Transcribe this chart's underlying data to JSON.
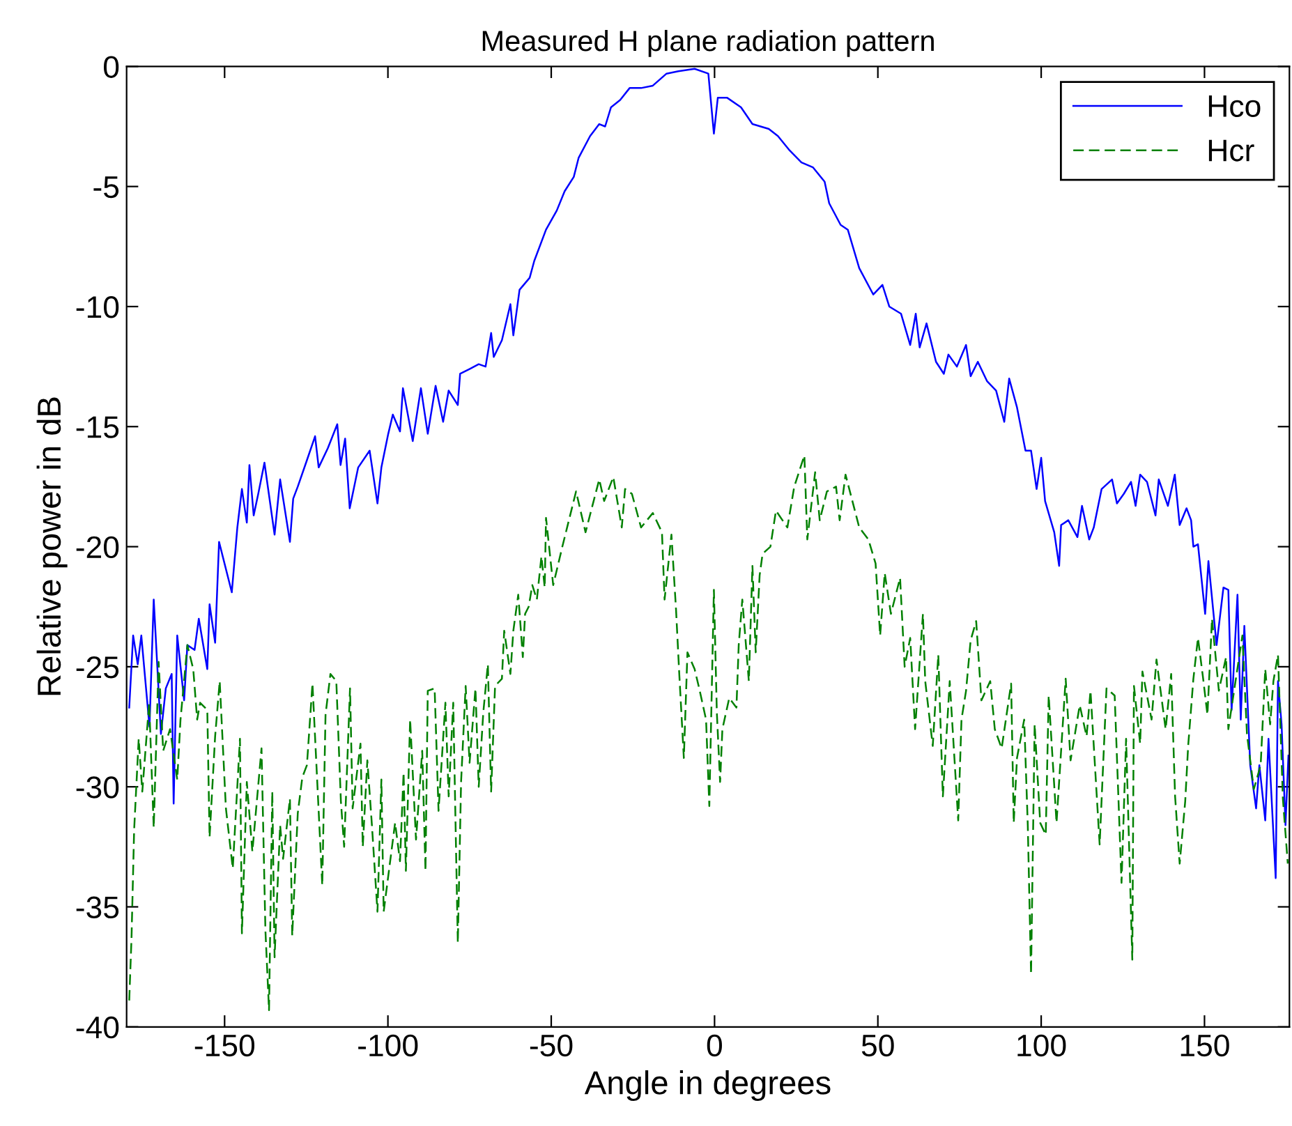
{
  "chart_data": {
    "type": "line",
    "title": "Measured H plane radiation pattern",
    "xlabel": "Angle in degrees",
    "ylabel": "Relative power in dB",
    "xlim": [
      -180,
      176
    ],
    "xticks": [
      -150,
      -100,
      -50,
      0,
      50,
      100,
      150
    ],
    "ylim": [
      -40,
      0
    ],
    "yticks": [
      -40,
      -35,
      -30,
      -25,
      -20,
      -15,
      -10,
      -5,
      0
    ],
    "grid": false,
    "legend": "top right",
    "series": [
      {
        "name": "Hco",
        "color": "#0000ff",
        "line_style": "solid",
        "x": [
          -179.2,
          -178,
          -176.6,
          -175.5,
          -173,
          -171.7,
          -169.5,
          -168,
          -166.2,
          -165.6,
          -164.5,
          -162.4,
          -161.4,
          -159.2,
          -157.9,
          -155.3,
          -154.6,
          -152.9,
          -151.7,
          -147.8,
          -146.1,
          -144.7,
          -143.2,
          -142.4,
          -141.1,
          -139.7,
          -137.8,
          -134.7,
          -133.0,
          -130.0,
          -129.0,
          -127.6,
          -124.8,
          -122.3,
          -121.2,
          -118.4,
          -115.5,
          -114.5,
          -113.1,
          -111.7,
          -109.1,
          -105.6,
          -103.2,
          -102.0,
          -99.9,
          -98.5,
          -96.3,
          -95.4,
          -92.4,
          -89.9,
          -87.8,
          -85.4,
          -83.1,
          -81.4,
          -78.6,
          -77.9,
          -75.0,
          -72.2,
          -70.1,
          -68.4,
          -67.6,
          -65.1,
          -62.5,
          -61.6,
          -59.7,
          -56.6,
          -55.2,
          -51.6,
          -48.3,
          -45.9,
          -43.1,
          -41.6,
          -38.1,
          -35.3,
          -33.5,
          -31.7,
          -28.9,
          -26.0,
          -22.5,
          -18.9,
          -14.7,
          -11.1,
          -6.1,
          -1.9,
          -0.2,
          1.0,
          3.8,
          8.1,
          11.6,
          16.6,
          19.4,
          23.0,
          26.6,
          30.1,
          33.7,
          35.1,
          38.6,
          40.8,
          44.3,
          48.6,
          51.4,
          53.5,
          57.1,
          59.9,
          61.6,
          62.8,
          64.9,
          67.8,
          70.2,
          71.6,
          74.2,
          77.0,
          78.4,
          80.6,
          83.4,
          86.2,
          88.7,
          90.2,
          92.6,
          95.2,
          96.9,
          98.6,
          100.0,
          101.2,
          104.0,
          105.5,
          106.1,
          108.3,
          111.1,
          112.5,
          114.7,
          116.1,
          118.5,
          121.7,
          123.2,
          125.3,
          127.5,
          128.9,
          130.3,
          132.4,
          135.0,
          136.0,
          138.8,
          140.9,
          142.4,
          144.5,
          145.9,
          146.6,
          148.0,
          150.2,
          151.2,
          153.7,
          155.8,
          157.3,
          158.3,
          160.1,
          161.1,
          162.2,
          164.0,
          165.8,
          166.8,
          168.6,
          169.6,
          171.8,
          172.5,
          173.6,
          174.8,
          175.7
        ],
        "values": [
          -26.7,
          -23.7,
          -24.9,
          -23.7,
          -27.5,
          -22.2,
          -27.8,
          -25.9,
          -25.3,
          -30.7,
          -23.7,
          -26.4,
          -24.1,
          -24.3,
          -23.0,
          -25.1,
          -22.4,
          -24.0,
          -19.8,
          -21.9,
          -19.2,
          -17.6,
          -19.0,
          -16.6,
          -18.7,
          -17.8,
          -16.5,
          -19.5,
          -17.2,
          -19.8,
          -18.0,
          -17.5,
          -16.4,
          -15.4,
          -16.7,
          -15.9,
          -14.9,
          -16.6,
          -15.5,
          -18.4,
          -16.7,
          -16.0,
          -18.2,
          -16.7,
          -15.3,
          -14.5,
          -15.2,
          -13.4,
          -15.6,
          -13.4,
          -15.3,
          -13.3,
          -14.8,
          -13.5,
          -14.1,
          -12.8,
          -12.6,
          -12.4,
          -12.5,
          -11.1,
          -12.1,
          -11.4,
          -9.9,
          -11.2,
          -9.3,
          -8.8,
          -8.1,
          -6.8,
          -6.0,
          -5.2,
          -4.6,
          -3.8,
          -2.9,
          -2.4,
          -2.5,
          -1.7,
          -1.4,
          -0.9,
          -0.9,
          -0.8,
          -0.3,
          -0.2,
          -0.1,
          -0.3,
          -2.8,
          -1.3,
          -1.3,
          -1.7,
          -2.4,
          -2.6,
          -2.9,
          -3.5,
          -4.0,
          -4.2,
          -4.8,
          -5.7,
          -6.6,
          -6.8,
          -8.4,
          -9.5,
          -9.1,
          -10.0,
          -10.3,
          -11.6,
          -10.3,
          -11.7,
          -10.7,
          -12.3,
          -12.8,
          -12.0,
          -12.5,
          -11.6,
          -12.9,
          -12.3,
          -13.1,
          -13.5,
          -14.8,
          -13.0,
          -14.2,
          -16.0,
          -16.0,
          -17.6,
          -16.3,
          -18.1,
          -19.4,
          -20.8,
          -19.1,
          -18.9,
          -19.6,
          -18.3,
          -19.7,
          -19.2,
          -17.6,
          -17.2,
          -18.2,
          -17.8,
          -17.3,
          -18.3,
          -17.0,
          -17.3,
          -18.7,
          -17.2,
          -18.3,
          -17.0,
          -19.1,
          -18.4,
          -18.9,
          -20.0,
          -19.9,
          -22.8,
          -20.6,
          -24.1,
          -21.7,
          -21.8,
          -26.8,
          -22.0,
          -27.2,
          -23.3,
          -29.1,
          -30.9,
          -29.1,
          -31.4,
          -28.0,
          -33.8,
          -25.6,
          -27.4,
          -31.6,
          -28.7
        ]
      },
      {
        "name": "Hcr",
        "color": "#008000",
        "line_style": "dashed",
        "x": [
          -179.2,
          -178.5,
          -177.7,
          -176.3,
          -175.2,
          -173.1,
          -171.7,
          -170.2,
          -168.8,
          -166.7,
          -164.5,
          -163.5,
          -161.4,
          -159.6,
          -158.4,
          -157.5,
          -155.3,
          -154.6,
          -152.9,
          -151.5,
          -149.6,
          -147.5,
          -145.3,
          -144.7,
          -143.2,
          -141.5,
          -138.7,
          -137.5,
          -136.4,
          -135.4,
          -134.7,
          -133.0,
          -132.1,
          -130.0,
          -129.3,
          -127.6,
          -126.2,
          -124.8,
          -123.1,
          -120.1,
          -119.1,
          -117.6,
          -115.8,
          -114.4,
          -113.4,
          -111.6,
          -110.8,
          -108.4,
          -107.7,
          -106.3,
          -104.9,
          -103.2,
          -102.0,
          -101.3,
          -97.8,
          -96.3,
          -95.2,
          -94.5,
          -93.2,
          -91.4,
          -89.5,
          -88.5,
          -87.8,
          -85.7,
          -84.5,
          -82.4,
          -81.4,
          -80.0,
          -78.6,
          -77.6,
          -76.2,
          -75.0,
          -73.2,
          -72.2,
          -70.8,
          -69.4,
          -68.4,
          -67.2,
          -65.1,
          -64.4,
          -62.5,
          -61.6,
          -60.1,
          -58.7,
          -58.0,
          -56.9,
          -55.8,
          -54.4,
          -53.0,
          -52.0,
          -51.6,
          -49.4,
          -46.6,
          -42.4,
          -39.5,
          -35.3,
          -33.8,
          -31.0,
          -28.4,
          -27.4,
          -25.3,
          -22.5,
          -18.9,
          -16.1,
          -15.3,
          -13.2,
          -11.8,
          -10.8,
          -9.4,
          -8.3,
          -6.1,
          -4.7,
          -2.6,
          -1.6,
          -0.2,
          0.7,
          1.7,
          2.4,
          4.5,
          6.7,
          7.4,
          8.5,
          10.5,
          11.6,
          12.6,
          13.8,
          14.7,
          17.1,
          18.8,
          22.3,
          24.4,
          27.5,
          28.4,
          30.8,
          32.2,
          34.4,
          37.2,
          38.3,
          40.1,
          42.2,
          44.3,
          47.1,
          49.3,
          50.7,
          52.1,
          54.0,
          56.8,
          58.2,
          59.9,
          61.4,
          63.8,
          64.5,
          66.8,
          68.5,
          69.9,
          72.0,
          74.6,
          75.6,
          77.0,
          78.4,
          80.1,
          81.7,
          84.4,
          85.8,
          87.9,
          90.8,
          91.6,
          92.6,
          94.8,
          95.9,
          96.9,
          98.0,
          99.7,
          101.4,
          102.3,
          104.7,
          107.5,
          109.0,
          111.8,
          113.9,
          115.1,
          117.9,
          120.0,
          122.5,
          124.6,
          126.0,
          127.9,
          128.4,
          130.3,
          131.0,
          133.8,
          135.3,
          138.1,
          139.8,
          141.0,
          142.4,
          144.1,
          145.0,
          146.6,
          148.0,
          149.5,
          150.9,
          152.3,
          154.4,
          156.6,
          157.3,
          161.6,
          163.0,
          165.1,
          167.2,
          168.6,
          170.1,
          171.1,
          172.5,
          174.0,
          175.5
        ],
        "values": [
          -38.9,
          -36.3,
          -31.8,
          -28.0,
          -30.2,
          -26.5,
          -31.7,
          -24.8,
          -28.5,
          -27.6,
          -29.7,
          -27.2,
          -24.1,
          -25.1,
          -27.2,
          -26.5,
          -26.8,
          -32.1,
          -27.9,
          -25.6,
          -30.9,
          -33.4,
          -28.0,
          -36.1,
          -29.8,
          -32.7,
          -28.4,
          -36.0,
          -39.3,
          -30.2,
          -37.1,
          -31.6,
          -33.0,
          -30.5,
          -36.2,
          -31.1,
          -29.6,
          -29.1,
          -25.7,
          -34.1,
          -27.0,
          -25.3,
          -25.6,
          -30.6,
          -32.5,
          -25.9,
          -30.9,
          -28.2,
          -32.5,
          -28.9,
          -31.6,
          -35.2,
          -29.7,
          -35.2,
          -31.5,
          -33.1,
          -29.4,
          -33.5,
          -27.2,
          -32.2,
          -28.5,
          -33.5,
          -26.0,
          -25.9,
          -31.0,
          -26.5,
          -30.4,
          -26.5,
          -36.5,
          -29.8,
          -25.8,
          -29.0,
          -25.9,
          -30.0,
          -26.9,
          -24.9,
          -30.2,
          -25.8,
          -25.5,
          -23.5,
          -25.3,
          -23.5,
          -22.0,
          -24.6,
          -22.8,
          -22.5,
          -21.6,
          -22.2,
          -20.4,
          -21.7,
          -18.8,
          -21.6,
          -20.0,
          -17.7,
          -19.4,
          -17.2,
          -18.1,
          -17.1,
          -19.2,
          -17.6,
          -17.8,
          -19.2,
          -18.6,
          -19.4,
          -22.2,
          -19.5,
          -22.6,
          -25.3,
          -28.8,
          -24.4,
          -25.1,
          -25.9,
          -27.2,
          -30.8,
          -21.8,
          -26.9,
          -29.8,
          -27.6,
          -26.3,
          -26.7,
          -24.1,
          -22.2,
          -25.6,
          -20.8,
          -24.4,
          -21.2,
          -20.3,
          -20.0,
          -18.5,
          -19.2,
          -17.5,
          -16.2,
          -19.7,
          -16.9,
          -18.9,
          -17.7,
          -17.5,
          -18.9,
          -17.0,
          -18.1,
          -19.2,
          -19.7,
          -20.7,
          -23.7,
          -21.1,
          -22.8,
          -21.3,
          -25.0,
          -23.8,
          -27.6,
          -22.8,
          -25.6,
          -28.3,
          -24.5,
          -30.4,
          -25.6,
          -31.4,
          -27.2,
          -26.0,
          -23.9,
          -23.1,
          -26.4,
          -25.6,
          -27.6,
          -28.4,
          -25.7,
          -31.5,
          -28.8,
          -27.2,
          -31.6,
          -37.8,
          -27.4,
          -31.5,
          -32.0,
          -26.2,
          -31.5,
          -25.5,
          -28.9,
          -26.6,
          -27.9,
          -26.0,
          -32.4,
          -25.9,
          -26.2,
          -34.0,
          -28.0,
          -37.2,
          -25.8,
          -28.2,
          -25.2,
          -27.2,
          -24.7,
          -27.6,
          -25.3,
          -30.4,
          -33.2,
          -30.6,
          -28.3,
          -25.5,
          -23.8,
          -25.4,
          -27.0,
          -23.0,
          -26.0,
          -24.6,
          -27.6,
          -23.7,
          -27.8,
          -30.1,
          -29.1,
          -25.1,
          -27.4,
          -25.6,
          -24.5,
          -30.5,
          -33.2
        ]
      }
    ]
  }
}
